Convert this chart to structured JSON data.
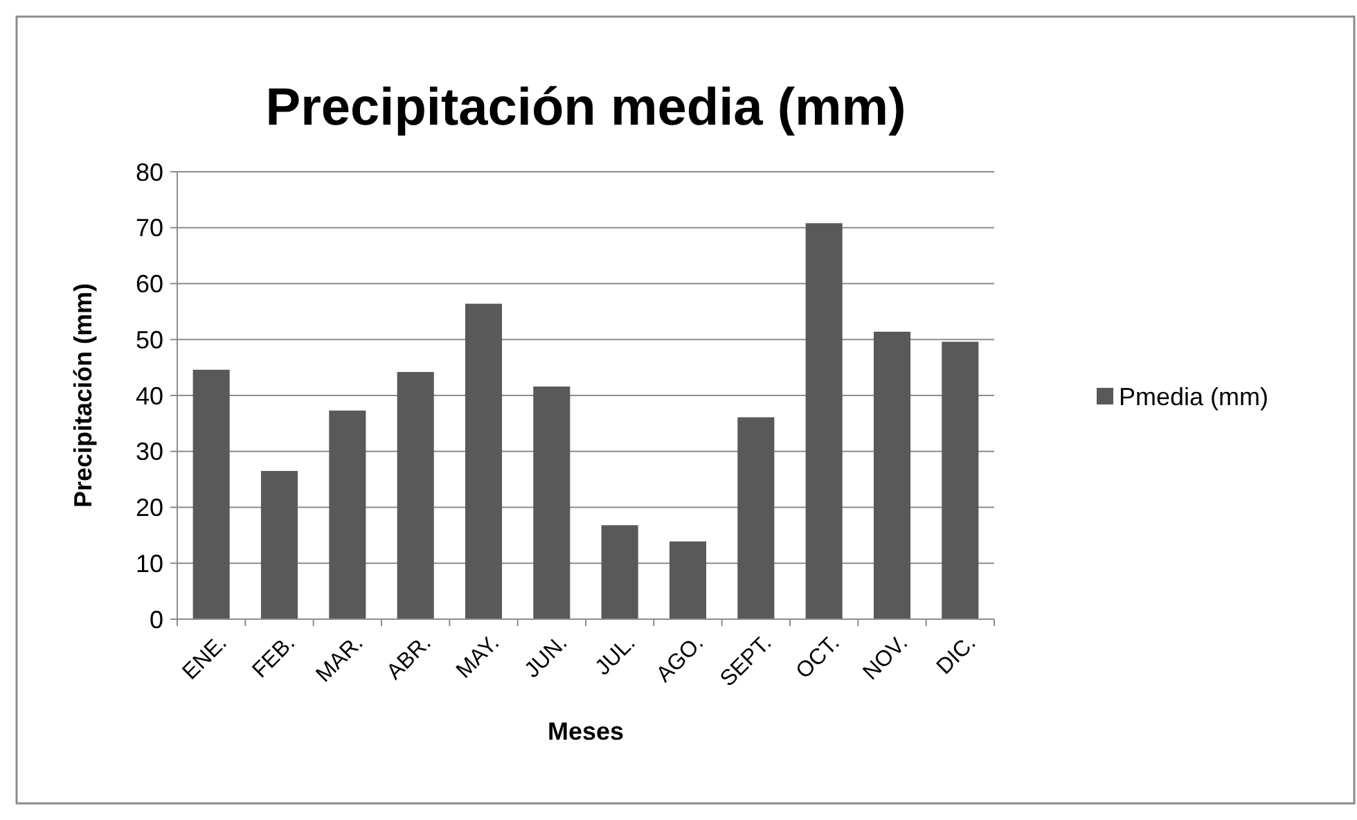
{
  "chart_data": {
    "type": "bar",
    "title": "Precipitación media (mm)",
    "xlabel": "Meses",
    "ylabel": "Precipitación (mm)",
    "categories": [
      "ENE.",
      "FEB.",
      "MAR.",
      "ABR.",
      "MAY.",
      "JUN.",
      "JUL.",
      "AGO.",
      "SEPT.",
      "OCT.",
      "NOV.",
      "DIC."
    ],
    "series": [
      {
        "name": "Pmedia (mm)",
        "color": "#595959",
        "values": [
          44.6,
          26.5,
          37.3,
          44.2,
          56.4,
          41.6,
          16.8,
          13.9,
          36.1,
          70.8,
          51.4,
          49.6
        ]
      }
    ],
    "ylim": [
      0,
      80
    ],
    "yticks": [
      0,
      10,
      20,
      30,
      40,
      50,
      60,
      70,
      80
    ],
    "grid": "y",
    "legend": "right"
  }
}
